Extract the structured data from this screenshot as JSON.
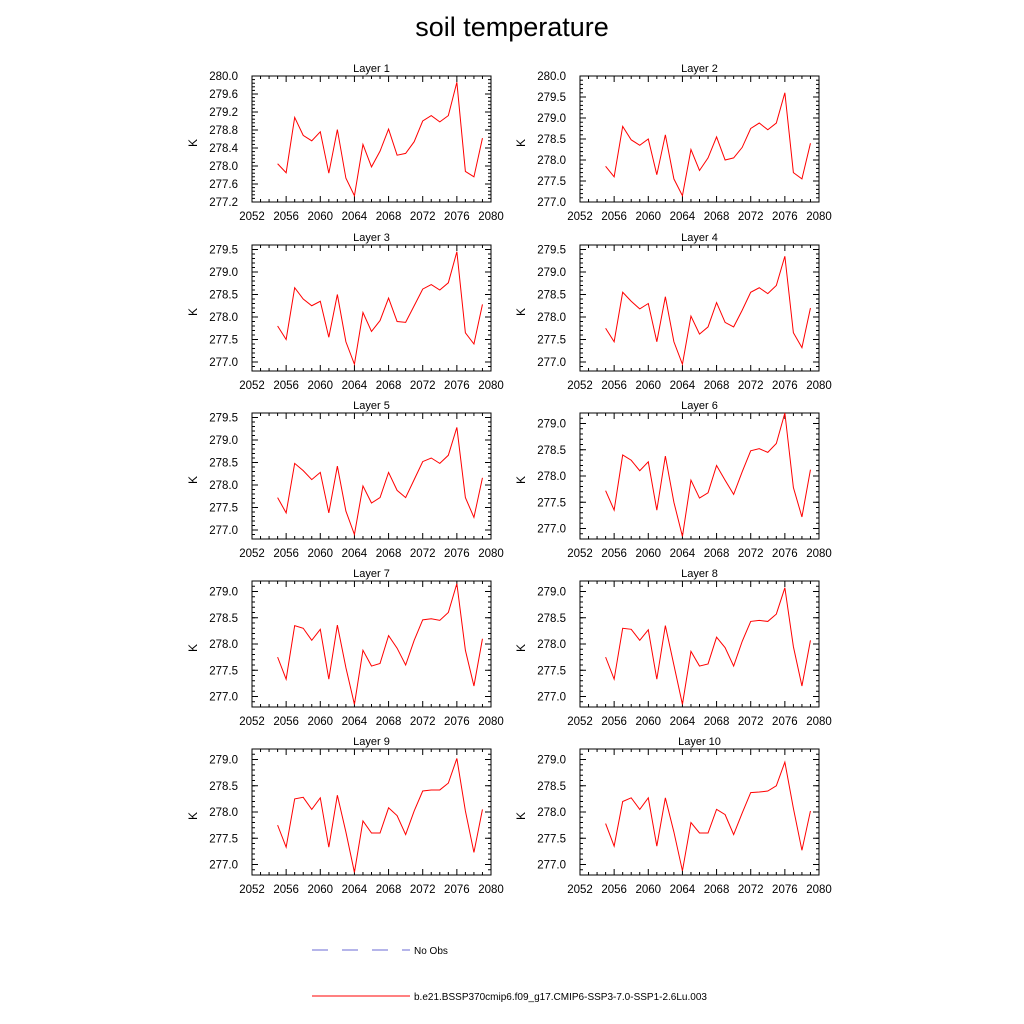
{
  "figure": {
    "title": "soil temperature",
    "legend": {
      "no_obs_label": "No Obs",
      "model_label": "b.e21.BSSP370cmip6.f09_g17.CMIP6-SSP3-7.0-SSP1-2.6Lu.003",
      "no_obs_color": "#6b6bd6",
      "model_color": "#ff0000"
    }
  },
  "chart_data": [
    {
      "type": "line",
      "title": "Layer 1",
      "ylabel": "K",
      "xlim": [
        2052,
        2080
      ],
      "ylim": [
        277.2,
        280.0
      ],
      "xticks": [
        "2052",
        "2056",
        "2060",
        "2064",
        "2068",
        "2072",
        "2076",
        "2080"
      ],
      "yticks": [
        "277.2",
        "277.6",
        "278.0",
        "278.4",
        "278.8",
        "279.2",
        "279.6",
        "280.0"
      ],
      "x": [
        2055,
        2056,
        2057,
        2058,
        2059,
        2060,
        2061,
        2062,
        2063,
        2064,
        2065,
        2066,
        2067,
        2068,
        2069,
        2070,
        2071,
        2072,
        2073,
        2074,
        2075,
        2076,
        2077,
        2078,
        2079
      ],
      "series": [
        {
          "name": "b.e21.BSSP370cmip6.f09_g17.CMIP6-SSP3-7.0-SSP1-2.6Lu.003",
          "values": [
            278.05,
            277.85,
            279.08,
            278.68,
            278.56,
            278.76,
            277.84,
            278.81,
            277.73,
            277.34,
            278.48,
            277.98,
            278.33,
            278.82,
            278.24,
            278.28,
            278.54,
            279.0,
            279.12,
            278.98,
            279.12,
            279.86,
            277.88,
            277.76,
            278.62
          ]
        }
      ]
    },
    {
      "type": "line",
      "title": "Layer 2",
      "ylabel": "K",
      "xlim": [
        2052,
        2080
      ],
      "ylim": [
        277.0,
        280.0
      ],
      "xticks": [
        "2052",
        "2056",
        "2060",
        "2064",
        "2068",
        "2072",
        "2076",
        "2080"
      ],
      "yticks": [
        "277.0",
        "277.5",
        "278.0",
        "278.5",
        "279.0",
        "279.5",
        "280.0"
      ],
      "x": [
        2055,
        2056,
        2057,
        2058,
        2059,
        2060,
        2061,
        2062,
        2063,
        2064,
        2065,
        2066,
        2067,
        2068,
        2069,
        2070,
        2071,
        2072,
        2073,
        2074,
        2075,
        2076,
        2077,
        2078,
        2079
      ],
      "series": [
        {
          "name": "b.e21.BSSP370cmip6.f09_g17.CMIP6-SSP3-7.0-SSP1-2.6Lu.003",
          "values": [
            277.85,
            277.6,
            278.8,
            278.48,
            278.35,
            278.5,
            277.65,
            278.6,
            277.55,
            277.15,
            278.25,
            277.75,
            278.05,
            278.55,
            278.0,
            278.05,
            278.3,
            278.75,
            278.88,
            278.72,
            278.88,
            279.6,
            277.7,
            277.55,
            278.4
          ]
        }
      ]
    },
    {
      "type": "line",
      "title": "Layer 3",
      "ylabel": "K",
      "xlim": [
        2052,
        2080
      ],
      "ylim": [
        276.8,
        279.6
      ],
      "xticks": [
        "2052",
        "2056",
        "2060",
        "2064",
        "2068",
        "2072",
        "2076",
        "2080"
      ],
      "yticks": [
        "277.0",
        "277.5",
        "278.0",
        "278.5",
        "279.0",
        "279.5"
      ],
      "x": [
        2055,
        2056,
        2057,
        2058,
        2059,
        2060,
        2061,
        2062,
        2063,
        2064,
        2065,
        2066,
        2067,
        2068,
        2069,
        2070,
        2071,
        2072,
        2073,
        2074,
        2075,
        2076,
        2077,
        2078,
        2079
      ],
      "series": [
        {
          "name": "b.e21.BSSP370cmip6.f09_g17.CMIP6-SSP3-7.0-SSP1-2.6Lu.003",
          "values": [
            277.8,
            277.5,
            278.65,
            278.4,
            278.25,
            278.35,
            277.55,
            278.5,
            277.45,
            276.95,
            278.1,
            277.68,
            277.92,
            278.42,
            277.9,
            277.88,
            278.25,
            278.62,
            278.72,
            278.6,
            278.76,
            279.45,
            277.65,
            277.4,
            278.28
          ]
        }
      ]
    },
    {
      "type": "line",
      "title": "Layer 4",
      "ylabel": "K",
      "xlim": [
        2052,
        2080
      ],
      "ylim": [
        276.8,
        279.6
      ],
      "xticks": [
        "2052",
        "2056",
        "2060",
        "2064",
        "2068",
        "2072",
        "2076",
        "2080"
      ],
      "yticks": [
        "277.0",
        "277.5",
        "278.0",
        "278.5",
        "279.0",
        "279.5"
      ],
      "x": [
        2055,
        2056,
        2057,
        2058,
        2059,
        2060,
        2061,
        2062,
        2063,
        2064,
        2065,
        2066,
        2067,
        2068,
        2069,
        2070,
        2071,
        2072,
        2073,
        2074,
        2075,
        2076,
        2077,
        2078,
        2079
      ],
      "series": [
        {
          "name": "b.e21.BSSP370cmip6.f09_g17.CMIP6-SSP3-7.0-SSP1-2.6Lu.003",
          "values": [
            277.75,
            277.45,
            278.55,
            278.35,
            278.18,
            278.3,
            277.45,
            278.45,
            277.45,
            276.95,
            278.02,
            277.62,
            277.78,
            278.32,
            277.88,
            277.78,
            278.15,
            278.55,
            278.65,
            278.52,
            278.7,
            279.35,
            277.65,
            277.32,
            278.2
          ]
        }
      ]
    },
    {
      "type": "line",
      "title": "Layer 5",
      "ylabel": "K",
      "xlim": [
        2052,
        2080
      ],
      "ylim": [
        276.8,
        279.6
      ],
      "xticks": [
        "2052",
        "2056",
        "2060",
        "2064",
        "2068",
        "2072",
        "2076",
        "2080"
      ],
      "yticks": [
        "277.0",
        "277.5",
        "278.0",
        "278.5",
        "279.0",
        "279.5"
      ],
      "x": [
        2055,
        2056,
        2057,
        2058,
        2059,
        2060,
        2061,
        2062,
        2063,
        2064,
        2065,
        2066,
        2067,
        2068,
        2069,
        2070,
        2071,
        2072,
        2073,
        2074,
        2075,
        2076,
        2077,
        2078,
        2079
      ],
      "series": [
        {
          "name": "b.e21.BSSP370cmip6.f09_g17.CMIP6-SSP3-7.0-SSP1-2.6Lu.003",
          "values": [
            277.72,
            277.38,
            278.48,
            278.32,
            278.12,
            278.28,
            277.38,
            278.42,
            277.42,
            276.9,
            277.98,
            277.6,
            277.72,
            278.28,
            277.88,
            277.72,
            278.12,
            278.52,
            278.6,
            278.48,
            278.66,
            279.28,
            277.72,
            277.28,
            278.16
          ]
        }
      ]
    },
    {
      "type": "line",
      "title": "Layer 6",
      "ylabel": "K",
      "xlim": [
        2052,
        2080
      ],
      "ylim": [
        276.8,
        279.2
      ],
      "xticks": [
        "2052",
        "2056",
        "2060",
        "2064",
        "2068",
        "2072",
        "2076",
        "2080"
      ],
      "yticks": [
        "277.0",
        "277.5",
        "278.0",
        "278.5",
        "279.0"
      ],
      "x": [
        2055,
        2056,
        2057,
        2058,
        2059,
        2060,
        2061,
        2062,
        2063,
        2064,
        2065,
        2066,
        2067,
        2068,
        2069,
        2070,
        2071,
        2072,
        2073,
        2074,
        2075,
        2076,
        2077,
        2078,
        2079
      ],
      "series": [
        {
          "name": "b.e21.BSSP370cmip6.f09_g17.CMIP6-SSP3-7.0-SSP1-2.6Lu.003",
          "values": [
            277.72,
            277.35,
            278.4,
            278.3,
            278.1,
            278.27,
            277.35,
            278.38,
            277.5,
            276.85,
            277.92,
            277.58,
            277.68,
            278.2,
            277.92,
            277.65,
            278.08,
            278.48,
            278.52,
            278.45,
            278.62,
            279.2,
            277.78,
            277.22,
            278.12
          ]
        }
      ]
    },
    {
      "type": "line",
      "title": "Layer 7",
      "ylabel": "K",
      "xlim": [
        2052,
        2080
      ],
      "ylim": [
        276.8,
        279.2
      ],
      "xticks": [
        "2052",
        "2056",
        "2060",
        "2064",
        "2068",
        "2072",
        "2076",
        "2080"
      ],
      "yticks": [
        "277.0",
        "277.5",
        "278.0",
        "278.5",
        "279.0"
      ],
      "x": [
        2055,
        2056,
        2057,
        2058,
        2059,
        2060,
        2061,
        2062,
        2063,
        2064,
        2065,
        2066,
        2067,
        2068,
        2069,
        2070,
        2071,
        2072,
        2073,
        2074,
        2075,
        2076,
        2077,
        2078,
        2079
      ],
      "series": [
        {
          "name": "b.e21.BSSP370cmip6.f09_g17.CMIP6-SSP3-7.0-SSP1-2.6Lu.003",
          "values": [
            277.75,
            277.33,
            278.35,
            278.3,
            278.07,
            278.28,
            277.33,
            278.36,
            277.55,
            276.85,
            277.88,
            277.58,
            277.63,
            278.16,
            277.92,
            277.6,
            278.07,
            278.46,
            278.48,
            278.45,
            278.6,
            279.15,
            277.88,
            277.2,
            278.1
          ]
        }
      ]
    },
    {
      "type": "line",
      "title": "Layer 8",
      "ylabel": "K",
      "xlim": [
        2052,
        2080
      ],
      "ylim": [
        276.8,
        279.2
      ],
      "xticks": [
        "2052",
        "2056",
        "2060",
        "2064",
        "2068",
        "2072",
        "2076",
        "2080"
      ],
      "yticks": [
        "277.0",
        "277.5",
        "278.0",
        "278.5",
        "279.0"
      ],
      "x": [
        2055,
        2056,
        2057,
        2058,
        2059,
        2060,
        2061,
        2062,
        2063,
        2064,
        2065,
        2066,
        2067,
        2068,
        2069,
        2070,
        2071,
        2072,
        2073,
        2074,
        2075,
        2076,
        2077,
        2078,
        2079
      ],
      "series": [
        {
          "name": "b.e21.BSSP370cmip6.f09_g17.CMIP6-SSP3-7.0-SSP1-2.6Lu.003",
          "values": [
            277.75,
            277.33,
            278.3,
            278.28,
            278.07,
            278.27,
            277.33,
            278.35,
            277.6,
            276.85,
            277.86,
            277.58,
            277.62,
            278.13,
            277.93,
            277.58,
            278.05,
            278.43,
            278.45,
            278.43,
            278.57,
            279.07,
            277.95,
            277.2,
            278.07
          ]
        }
      ]
    },
    {
      "type": "line",
      "title": "Layer 9",
      "ylabel": "K",
      "xlim": [
        2052,
        2080
      ],
      "ylim": [
        276.8,
        279.2
      ],
      "xticks": [
        "2052",
        "2056",
        "2060",
        "2064",
        "2068",
        "2072",
        "2076",
        "2080"
      ],
      "yticks": [
        "277.0",
        "277.5",
        "278.0",
        "278.5",
        "279.0"
      ],
      "x": [
        2055,
        2056,
        2057,
        2058,
        2059,
        2060,
        2061,
        2062,
        2063,
        2064,
        2065,
        2066,
        2067,
        2068,
        2069,
        2070,
        2071,
        2072,
        2073,
        2074,
        2075,
        2076,
        2077,
        2078,
        2079
      ],
      "series": [
        {
          "name": "b.e21.BSSP370cmip6.f09_g17.CMIP6-SSP3-7.0-SSP1-2.6Lu.003",
          "values": [
            277.75,
            277.33,
            278.25,
            278.28,
            278.05,
            278.27,
            277.33,
            278.32,
            277.62,
            276.85,
            277.83,
            277.6,
            277.6,
            278.08,
            277.93,
            277.57,
            278.02,
            278.4,
            278.42,
            278.42,
            278.55,
            279.02,
            278.02,
            277.23,
            278.05
          ]
        }
      ]
    },
    {
      "type": "line",
      "title": "Layer 10",
      "ylabel": "K",
      "xlim": [
        2052,
        2080
      ],
      "ylim": [
        276.8,
        279.2
      ],
      "xticks": [
        "2052",
        "2056",
        "2060",
        "2064",
        "2068",
        "2072",
        "2076",
        "2080"
      ],
      "yticks": [
        "277.0",
        "277.5",
        "278.0",
        "278.5",
        "279.0"
      ],
      "x": [
        2055,
        2056,
        2057,
        2058,
        2059,
        2060,
        2061,
        2062,
        2063,
        2064,
        2065,
        2066,
        2067,
        2068,
        2069,
        2070,
        2071,
        2072,
        2073,
        2074,
        2075,
        2076,
        2077,
        2078,
        2079
      ],
      "series": [
        {
          "name": "b.e21.BSSP370cmip6.f09_g17.CMIP6-SSP3-7.0-SSP1-2.6Lu.003",
          "values": [
            277.78,
            277.35,
            278.2,
            278.27,
            278.05,
            278.27,
            277.35,
            278.27,
            277.62,
            276.88,
            277.8,
            277.6,
            277.6,
            278.05,
            277.95,
            277.57,
            277.98,
            278.37,
            278.38,
            278.4,
            278.5,
            278.95,
            278.07,
            277.27,
            278.02
          ]
        }
      ]
    }
  ]
}
